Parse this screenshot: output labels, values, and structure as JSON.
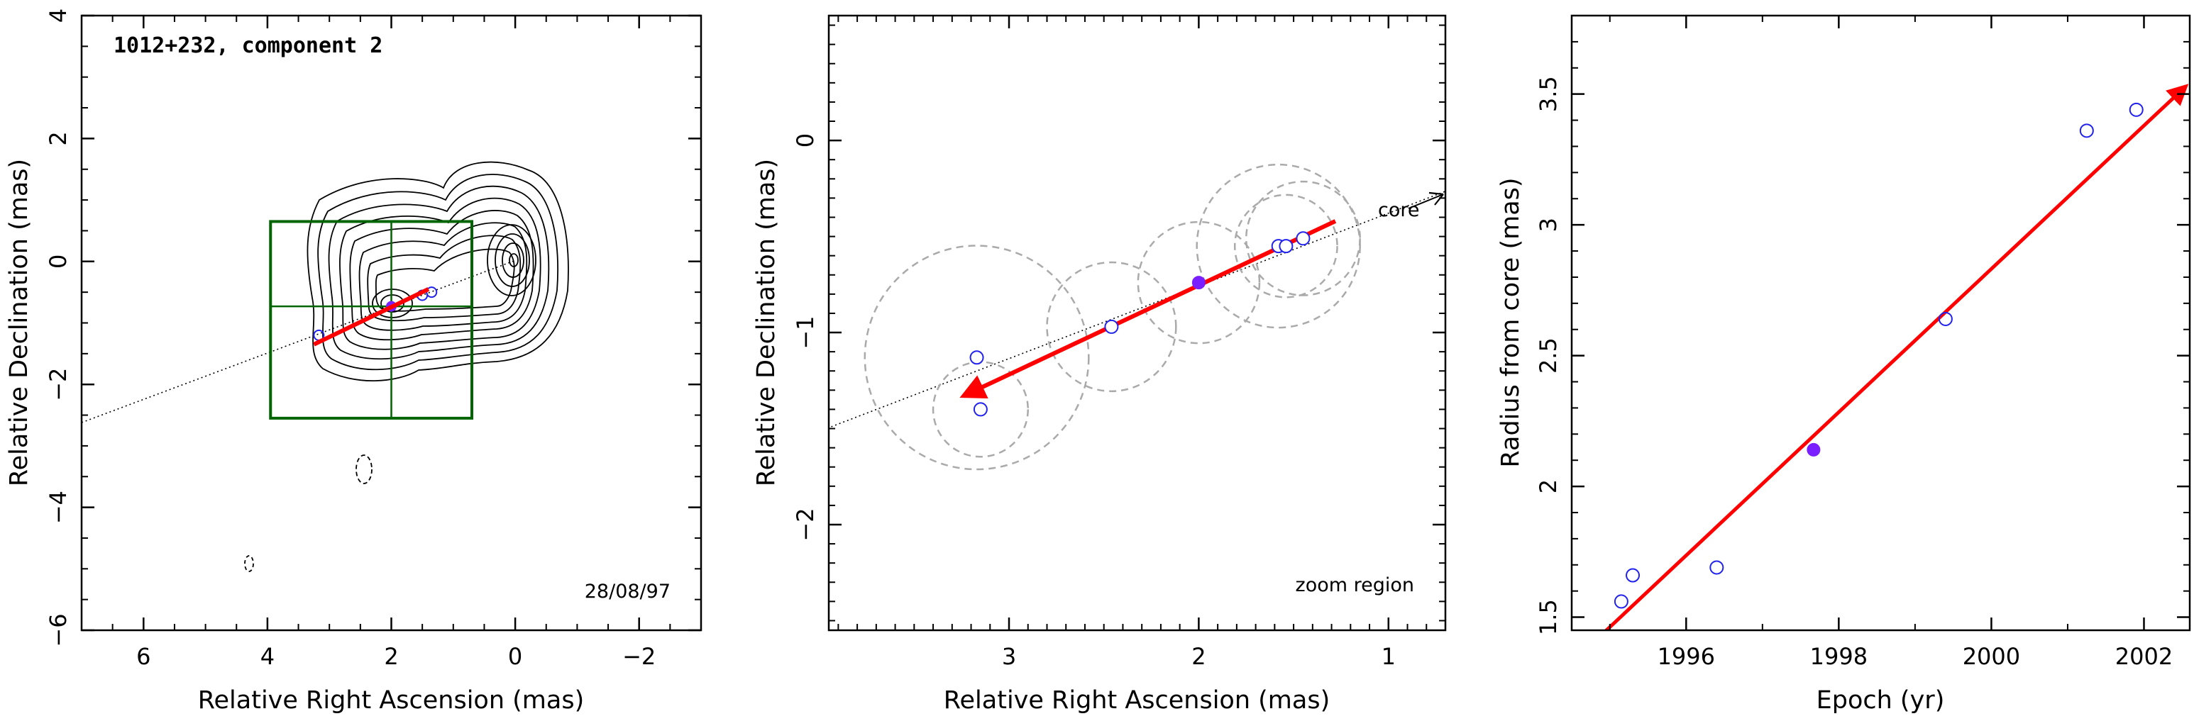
{
  "colors": {
    "axes": "#000000",
    "fit_arrow": "#ff0000",
    "open_points": "#2222ee",
    "filled_point": "#7a1fff",
    "zoom_box": "#006400",
    "error_circles": "#aaaaaa",
    "contours": "#000000",
    "line_of_motion": "#000000"
  },
  "chart_data": [
    {
      "type": "scatter",
      "panel": "contour-map",
      "title": "1012+232, component 2",
      "annotation": "28/08/97",
      "xlabel": "Relative Right Ascension (mas)",
      "ylabel": "Relative Declination (mas)",
      "xlim": [
        7,
        -3
      ],
      "ylim": [
        -6,
        4
      ],
      "xticks": [
        6,
        4,
        2,
        0,
        -2
      ],
      "xtick_labels": [
        "6",
        "4",
        "2",
        "0",
        "−2"
      ],
      "yticks": [
        -6,
        -4,
        -2,
        0,
        2,
        4
      ],
      "ytick_labels": [
        "−6",
        "−4",
        "−2",
        "0",
        "2",
        "4"
      ],
      "core": [
        0,
        0
      ],
      "line_of_motion": [
        [
          7,
          -2.65
        ],
        [
          0,
          0
        ]
      ],
      "zoom_region": {
        "x": [
          0.7,
          3.95
        ],
        "y": [
          -2.55,
          0.65
        ],
        "cross": [
          2.0,
          -0.73
        ]
      },
      "fit_arrow": {
        "from": [
          1.4,
          -0.45
        ],
        "to": [
          3.25,
          -1.35
        ]
      },
      "points_open": [
        [
          3.17,
          -1.2
        ],
        [
          1.5,
          -0.55
        ],
        [
          1.35,
          -0.5
        ]
      ],
      "points_filled": [
        [
          2.0,
          -0.73
        ]
      ],
      "negative_contours": [
        [
          2.45,
          -3.45
        ],
        [
          4.3,
          -5.0
        ]
      ]
    },
    {
      "type": "scatter",
      "panel": "zoom-region",
      "annotation": "zoom region",
      "core_label": "core",
      "xlabel": "Relative Right Ascension (mas)",
      "ylabel": "Relative Declination (mas)",
      "xlim": [
        3.95,
        0.7
      ],
      "ylim": [
        -2.55,
        0.65
      ],
      "xticks": [
        3,
        2,
        1
      ],
      "xtick_labels": [
        "3",
        "2",
        "1"
      ],
      "yticks": [
        -2,
        -1,
        0
      ],
      "ytick_labels": [
        "−2",
        "−1",
        "0"
      ],
      "fit_arrow": {
        "from": [
          1.28,
          -0.42
        ],
        "to": [
          3.24,
          -1.33
        ]
      },
      "points": [
        {
          "x": 3.17,
          "y": -1.13,
          "r": 0.59,
          "filled": false
        },
        {
          "x": 3.15,
          "y": -1.4,
          "r": 0.25,
          "filled": false
        },
        {
          "x": 2.46,
          "y": -0.97,
          "r": 0.34,
          "filled": false
        },
        {
          "x": 2.0,
          "y": -0.74,
          "r": 0.32,
          "filled": true
        },
        {
          "x": 1.58,
          "y": -0.55,
          "r": 0.43,
          "filled": false
        },
        {
          "x": 1.54,
          "y": -0.55,
          "r": 0.27,
          "filled": false
        },
        {
          "x": 1.45,
          "y": -0.51,
          "r": 0.3,
          "filled": false
        }
      ]
    },
    {
      "type": "scatter",
      "panel": "radius-vs-epoch",
      "xlabel": "Epoch (yr)",
      "ylabel": "Radius from core (mas)",
      "xlim": [
        1994.5,
        2002.6
      ],
      "ylim": [
        1.45,
        3.8
      ],
      "xticks": [
        1996,
        1998,
        2000,
        2002
      ],
      "xtick_labels": [
        "1996",
        "1998",
        "2000",
        "2002"
      ],
      "yticks": [
        1.5,
        2,
        2.5,
        3,
        3.5
      ],
      "ytick_labels": [
        "1.5",
        "2",
        "2.5",
        "3",
        "3.5"
      ],
      "fit_line": [
        [
          1994.7,
          1.38
        ],
        [
          2002.55,
          3.53
        ]
      ],
      "points": [
        {
          "x": 1995.15,
          "y": 1.56,
          "filled": false
        },
        {
          "x": 1995.3,
          "y": 1.66,
          "filled": false
        },
        {
          "x": 1996.4,
          "y": 1.69,
          "filled": false
        },
        {
          "x": 1997.67,
          "y": 2.14,
          "filled": true
        },
        {
          "x": 1999.4,
          "y": 2.64,
          "filled": false
        },
        {
          "x": 2001.25,
          "y": 3.36,
          "filled": false
        },
        {
          "x": 2001.9,
          "y": 3.44,
          "filled": false
        }
      ]
    }
  ]
}
